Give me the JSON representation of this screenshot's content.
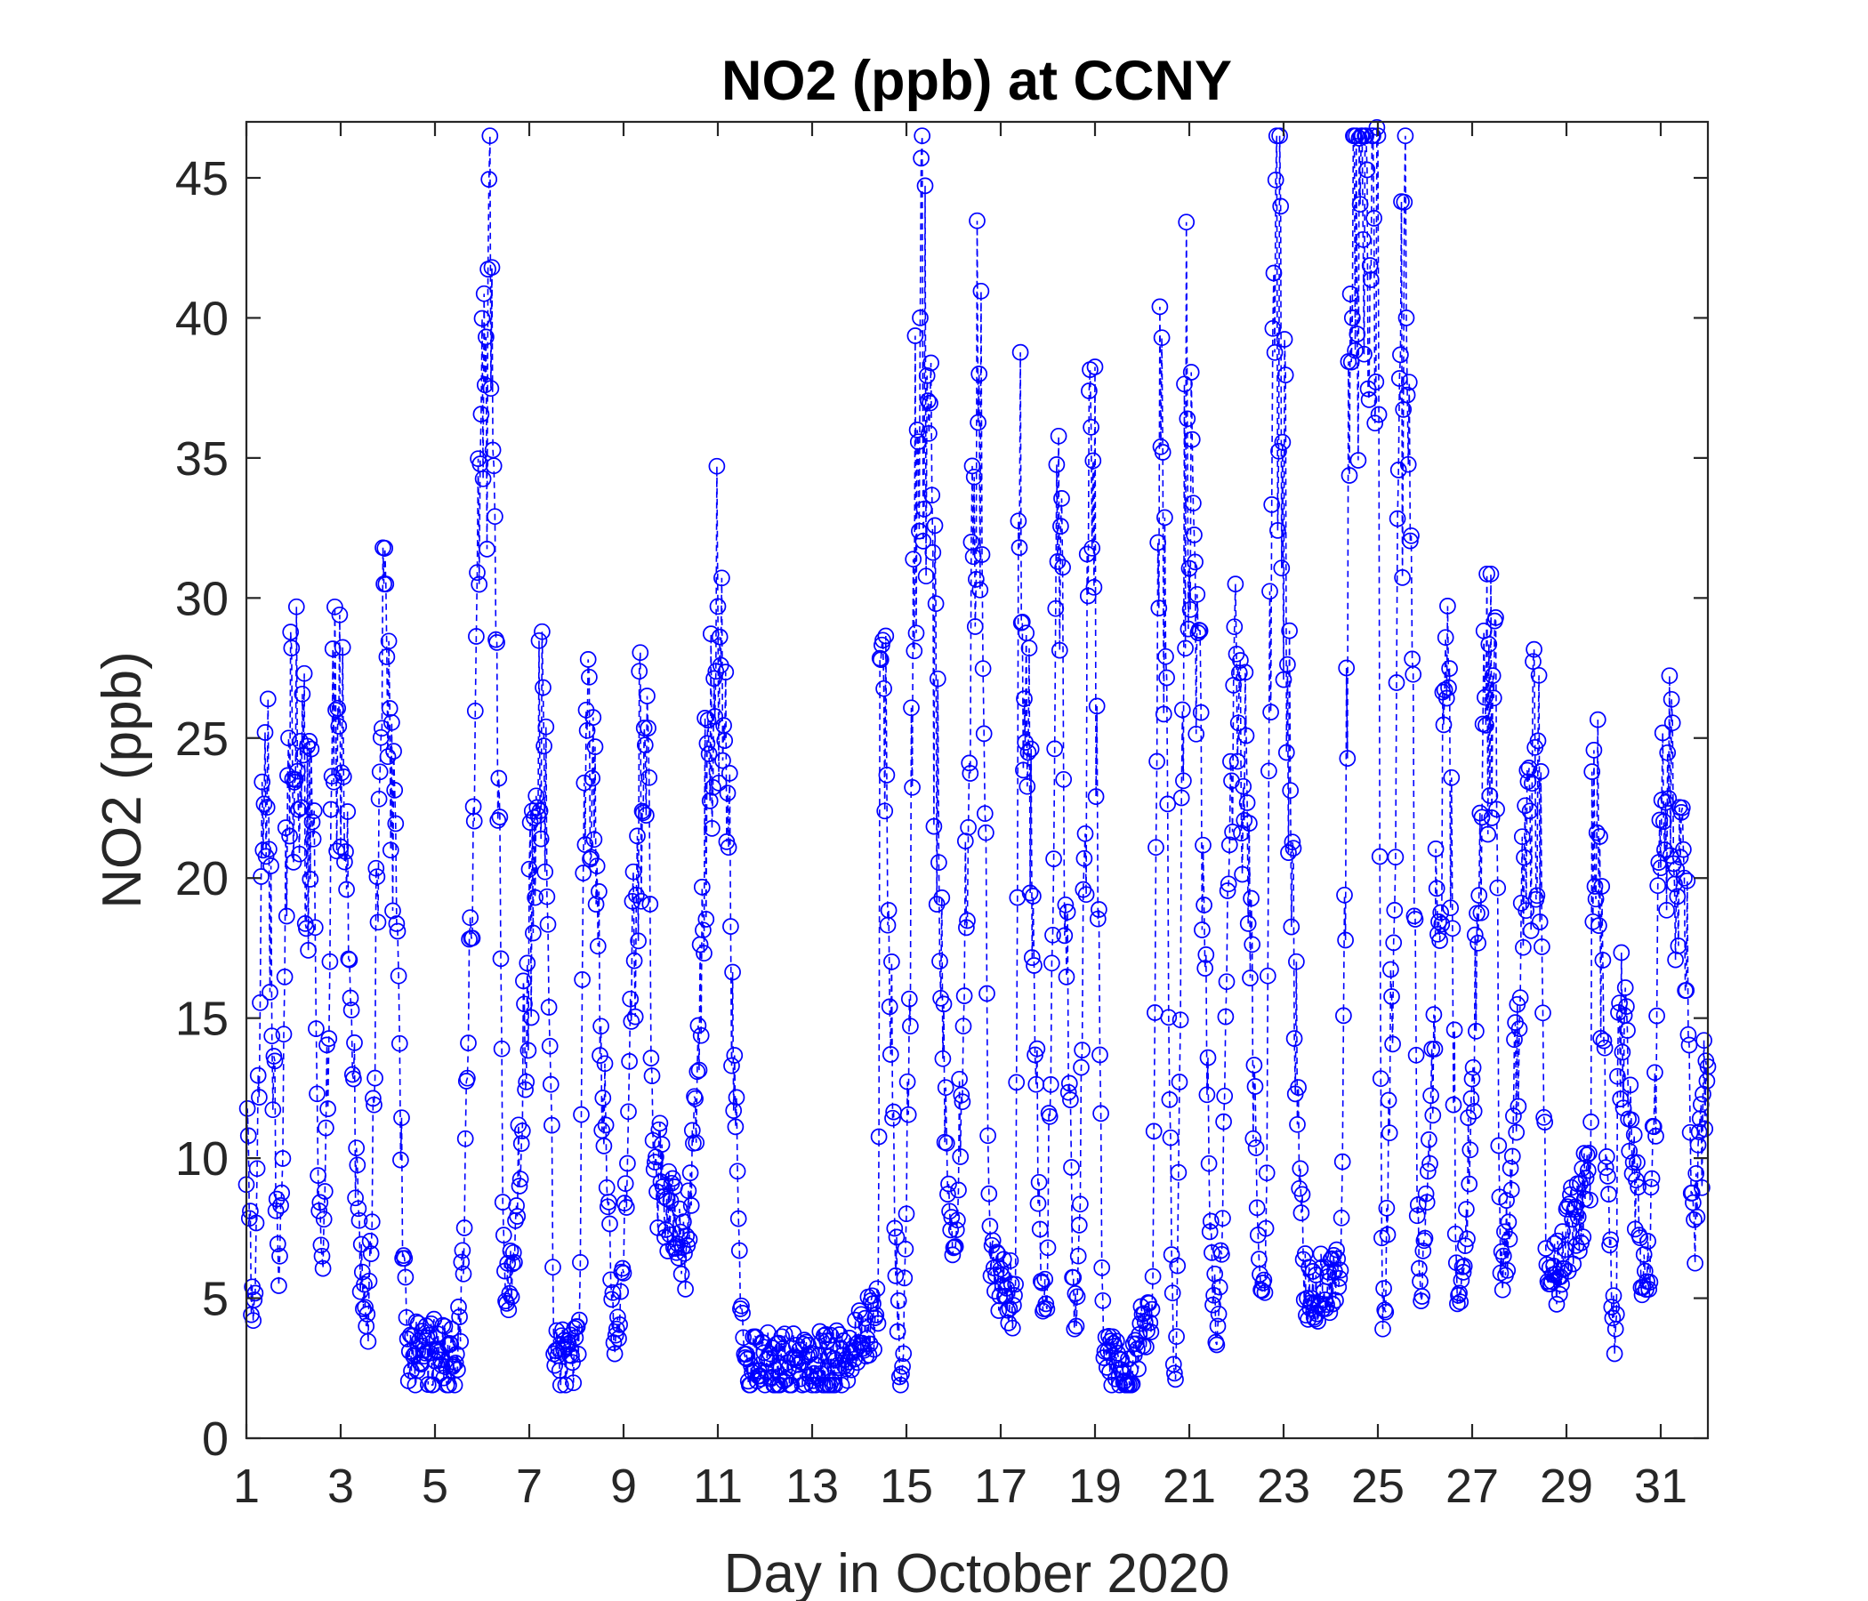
{
  "chart_data": {
    "type": "line",
    "title": "NO2 (ppb) at CCNY",
    "xlabel": "Day in October 2020",
    "ylabel": "NO2 (ppb)",
    "xlim": [
      1,
      32
    ],
    "ylim": [
      0,
      47
    ],
    "xticks": [
      1,
      3,
      5,
      7,
      9,
      11,
      13,
      15,
      17,
      19,
      21,
      23,
      25,
      27,
      29,
      31
    ],
    "yticks": [
      0,
      5,
      10,
      15,
      20,
      25,
      30,
      35,
      40,
      45
    ],
    "grid": false,
    "marker": "circle",
    "line_style": "dashed",
    "color": "#0000ff",
    "peaks": {
      "days": [
        1.4,
        1.9,
        2.4,
        2.9,
        3.95,
        6.2,
        7.35,
        8.2,
        9.5,
        11.0,
        14.45,
        15.3,
        16.55,
        17.4,
        18.2,
        18.95,
        20.4,
        20.95,
        22.0,
        22.8,
        24.45,
        24.98,
        25.6,
        26.5,
        27.5,
        28.4,
        29.55,
        30.1,
        31.1,
        31.5
      ],
      "values": [
        25.2,
        25.0,
        22.0,
        26.0,
        30.5,
        41.8,
        25.4,
        26.0,
        26.5,
        29.7,
        27.8,
        40.0,
        38.0,
        31.8,
        31.3,
        34.9,
        35.4,
        36.4,
        28.0,
        41.6,
        40.0,
        46.8,
        40.0,
        26.8,
        29.3,
        24.9,
        23.8,
        15.2,
        22.7,
        20.0
      ]
    },
    "troughs": {
      "days": [
        1.15,
        1.7,
        2.6,
        3.55,
        4.45,
        5.45,
        6.5,
        7.55,
        8.05,
        8.85,
        9.65,
        10.3,
        11.6,
        12.5,
        13.55,
        14.4,
        14.9,
        16.0,
        16.8,
        17.3,
        17.95,
        18.6,
        19.2,
        19.6,
        20.2,
        20.7,
        21.6,
        22.6,
        23.5,
        24.2,
        25.1,
        25.9,
        26.7,
        27.6,
        28.6,
        29.5,
        30.05,
        30.7,
        31.7
      ],
      "values": [
        4.2,
        6.5,
        6.5,
        4.0,
        3.1,
        3.0,
        4.9,
        2.6,
        3.0,
        3.9,
        9.6,
        6.6,
        3.0,
        2.5,
        2.6,
        4.1,
        2.3,
        6.8,
        5.8,
        5.1,
        4.8,
        4.0,
        3.1,
        2.0,
        4.6,
        2.1,
        4.0,
        5.2,
        5.0,
        6.0,
        3.9,
        5.6,
        5.1,
        5.9,
        5.6,
        8.5,
        3.9,
        5.6,
        7.8
      ]
    },
    "samples_per_day": 48,
    "seed": 20201031
  }
}
